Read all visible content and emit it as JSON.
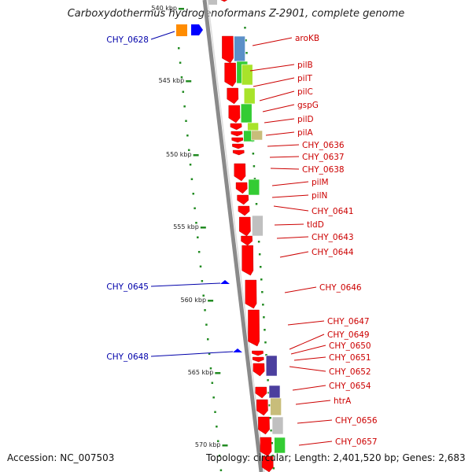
{
  "title": "Carboxydothermus hydrogenoformans Z-2901, complete genome",
  "accession": "Accession: NC_007503",
  "topology": "Topology: circular; Length: 2,401,520 bp; Genes: 2,683",
  "colors": {
    "backbone": "#8a8a8a",
    "cds": "#ff0000",
    "ruler_dots": "#228b22",
    "label_right": "#cc0000",
    "label_left": "#0000aa",
    "orange": "#ff8c00",
    "blue": "#0000ff",
    "steelblue": "#5b8fc8",
    "green": "#33cc33",
    "lime": "#a8e32a",
    "gray": "#c0c0c0",
    "slateblue": "#4b3f9e",
    "khaki": "#c8bd7a"
  },
  "ruler": [
    "540 kbp",
    "545 kbp",
    "550 kbp",
    "555 kbp",
    "560 kbp",
    "565 kbp",
    "570 kbp"
  ],
  "left_genes": [
    "CHY_0628",
    "CHY_0645",
    "CHY_0648"
  ],
  "right_genes": [
    "aroKB",
    "pilB",
    "pilT",
    "pilC",
    "gspG",
    "pilD",
    "pilA",
    "CHY_0636",
    "CHY_0637",
    "CHY_0638",
    "pilM",
    "pilN",
    "CHY_0641",
    "tldD",
    "CHY_0643",
    "CHY_0644",
    "CHY_0646",
    "CHY_0647",
    "CHY_0649",
    "CHY_0650",
    "CHY_0651",
    "CHY_0652",
    "CHY_0654",
    "htrA",
    "CHY_0656",
    "CHY_0657"
  ]
}
